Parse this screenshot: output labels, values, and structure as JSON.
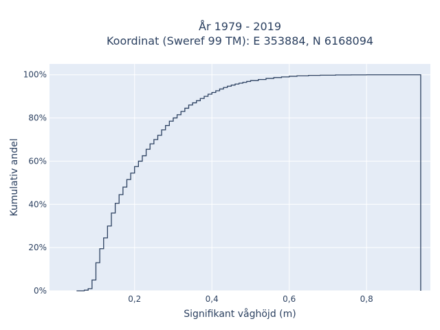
{
  "chart_data": {
    "type": "line",
    "subtype": "ecdf-step",
    "title": "År 1979 - 2019",
    "subtitle": "Koordinat (Sweref 99 TM): E 353884, N 6168094",
    "xlabel": "Signifikant våghöjd (m)",
    "ylabel": "Kumulativ andel",
    "xlim": [
      -0.02,
      0.965
    ],
    "ylim": [
      0,
      1.05
    ],
    "x_ticks": [
      {
        "value": 0.2,
        "label": "0,2"
      },
      {
        "value": 0.4,
        "label": "0,4"
      },
      {
        "value": 0.6,
        "label": "0,6"
      },
      {
        "value": 0.8,
        "label": "0,8"
      }
    ],
    "y_ticks": [
      {
        "value": 0,
        "label": "0%"
      },
      {
        "value": 0.2,
        "label": "20%"
      },
      {
        "value": 0.4,
        "label": "40%"
      },
      {
        "value": 0.6,
        "label": "60%"
      },
      {
        "value": 0.8,
        "label": "80%"
      },
      {
        "value": 1.0,
        "label": "100%"
      }
    ],
    "grid": true,
    "colors": {
      "plot_bg": "#e5ecf6",
      "grid": "#ffffff",
      "line": "#2a3f5f",
      "text": "#2a3f5f"
    },
    "series": [
      {
        "x": [
          0.05,
          0.07,
          0.08,
          0.09,
          0.1,
          0.11,
          0.12,
          0.13,
          0.14,
          0.15,
          0.16,
          0.17,
          0.18,
          0.19,
          0.2,
          0.21,
          0.22,
          0.23,
          0.24,
          0.25,
          0.26,
          0.27,
          0.28,
          0.29,
          0.3,
          0.31,
          0.32,
          0.33,
          0.34,
          0.35,
          0.36,
          0.37,
          0.38,
          0.39,
          0.4,
          0.41,
          0.42,
          0.43,
          0.44,
          0.45,
          0.46,
          0.47,
          0.48,
          0.49,
          0.5,
          0.52,
          0.54,
          0.56,
          0.58,
          0.6,
          0.62,
          0.65,
          0.68,
          0.72,
          0.76,
          0.8,
          0.86,
          0.94
        ],
        "y": [
          0.0,
          0.003,
          0.01,
          0.05,
          0.13,
          0.195,
          0.245,
          0.3,
          0.36,
          0.405,
          0.445,
          0.48,
          0.515,
          0.545,
          0.575,
          0.6,
          0.625,
          0.655,
          0.68,
          0.7,
          0.72,
          0.745,
          0.765,
          0.785,
          0.8,
          0.815,
          0.83,
          0.845,
          0.86,
          0.87,
          0.88,
          0.89,
          0.9,
          0.91,
          0.918,
          0.926,
          0.934,
          0.941,
          0.947,
          0.952,
          0.957,
          0.961,
          0.965,
          0.969,
          0.973,
          0.978,
          0.983,
          0.987,
          0.99,
          0.993,
          0.995,
          0.997,
          0.998,
          0.999,
          0.9995,
          1.0,
          1.0,
          1.0
        ],
        "x_end": 0.94
      }
    ]
  }
}
